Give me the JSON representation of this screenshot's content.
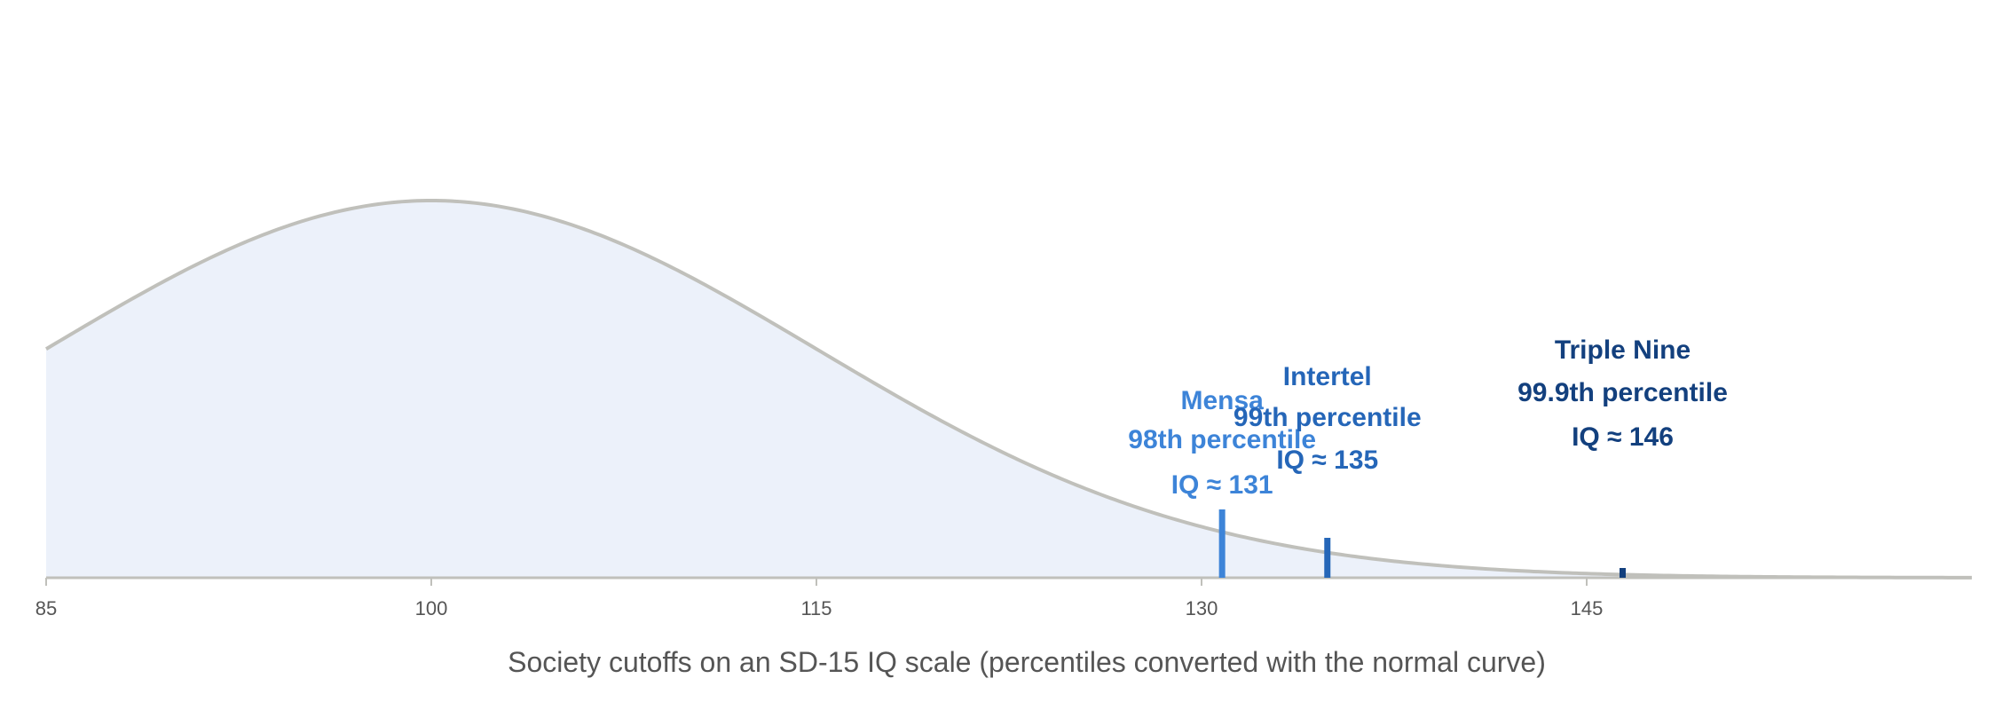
{
  "chart_data": {
    "type": "area",
    "distribution": "normal",
    "mean": 100,
    "sd": 15,
    "xlim": [
      85,
      160
    ],
    "xticks": [
      "85",
      "100",
      "115",
      "130",
      "145"
    ],
    "xlabel": "Society cutoffs on an SD-15 IQ scale (percentiles converted with the normal curve)",
    "colors": {
      "curve_fill": "#ecf1fa",
      "curve_line": "#c0c0bb",
      "axis": "#c0c0bb"
    },
    "markers": [
      {
        "name": "Mensa",
        "percentile_label": "98th percentile",
        "iq_label": "IQ ≈ 131",
        "x": 130.8,
        "color": "#3d84d8"
      },
      {
        "name": "Intertel",
        "percentile_label": "99th percentile",
        "iq_label": "IQ ≈ 135",
        "x": 134.9,
        "color": "#2566b8"
      },
      {
        "name": "Triple Nine",
        "percentile_label": "99.9th percentile",
        "iq_label": "IQ ≈ 146",
        "x": 146.4,
        "color": "#13407e"
      }
    ]
  }
}
